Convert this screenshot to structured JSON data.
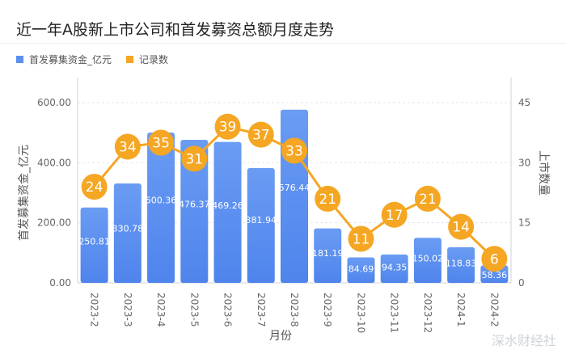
{
  "header": {
    "title": "近一年A股新上市公司和首发募资总额月度走势"
  },
  "legend": {
    "items": [
      {
        "label": "首发募集资金_亿元",
        "color": "#5b8ff0"
      },
      {
        "label": "记录数",
        "color": "#f5a623"
      }
    ]
  },
  "axes": {
    "left_label": "首发募集资金_亿元",
    "right_label": "上市数量",
    "x_label": "月份",
    "left_ticks": [
      "0.00",
      "200.00",
      "400.00",
      "600.00"
    ],
    "right_ticks": [
      "0",
      "15",
      "30",
      "45"
    ]
  },
  "watermark": "深水财经社",
  "chart_data": {
    "type": "bar",
    "title": "近一年A股新上市公司和首发募资总额月度走势",
    "xlabel": "月份",
    "ylabel": "首发募集资金_亿元",
    "y2label": "上市数量",
    "ylim": [
      0,
      600
    ],
    "y2lim": [
      0,
      45
    ],
    "grid": true,
    "legend_position": "top-left",
    "categories": [
      "2023-2",
      "2023-3",
      "2023-4",
      "2023-5",
      "2023-6",
      "2023-7",
      "2023-8",
      "2023-9",
      "2023-10",
      "2023-11",
      "2023-12",
      "2024-1",
      "2024-2"
    ],
    "series": [
      {
        "name": "首发募集资金_亿元",
        "type": "bar",
        "axis": "left",
        "color": "#5b8ff0",
        "values": [
          250.81,
          330.78,
          500.36,
          476.37,
          469.26,
          381.94,
          576.44,
          181.19,
          84.69,
          94.35,
          150.02,
          118.83,
          58.36
        ]
      },
      {
        "name": "记录数",
        "type": "line",
        "axis": "right",
        "color": "#f5a623",
        "values": [
          24,
          34,
          35,
          31,
          39,
          37,
          33,
          21,
          11,
          17,
          21,
          14,
          6
        ]
      }
    ]
  }
}
